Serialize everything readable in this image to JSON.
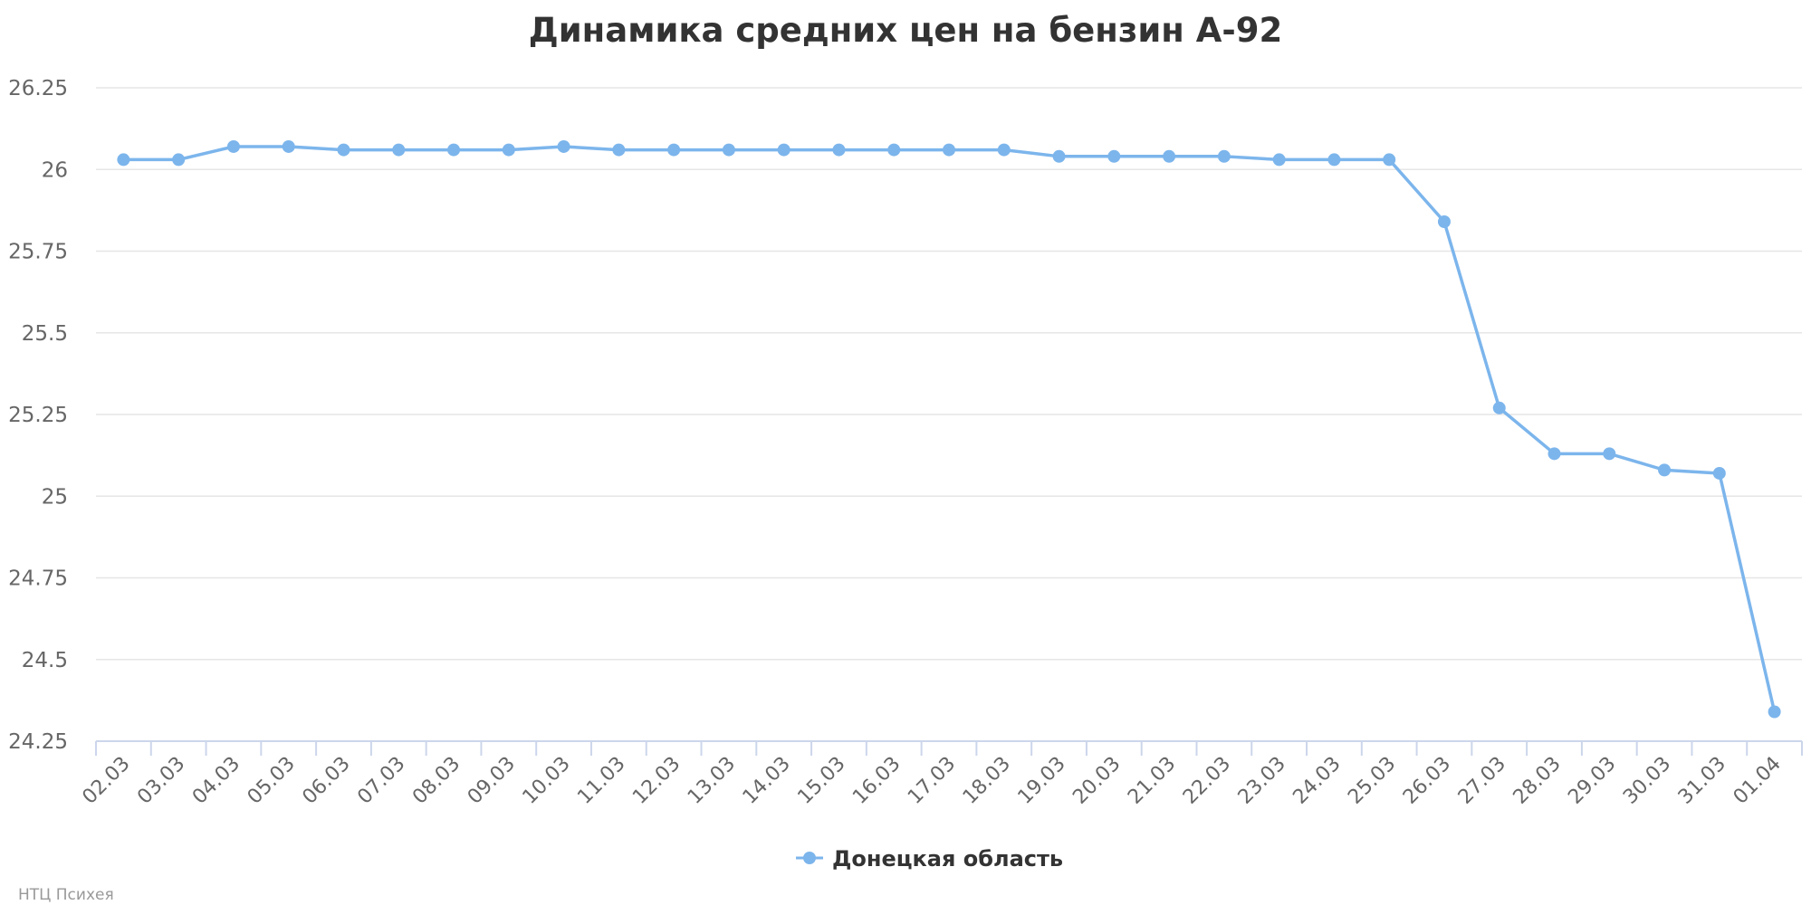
{
  "chart_data": {
    "type": "line",
    "title": "Динамика средних цен на бензин А-92",
    "categories": [
      "02.03",
      "03.03",
      "04.03",
      "05.03",
      "06.03",
      "07.03",
      "08.03",
      "09.03",
      "10.03",
      "11.03",
      "12.03",
      "13.03",
      "14.03",
      "15.03",
      "16.03",
      "17.03",
      "18.03",
      "19.03",
      "20.03",
      "21.03",
      "22.03",
      "23.03",
      "24.03",
      "25.03",
      "26.03",
      "27.03",
      "28.03",
      "29.03",
      "30.03",
      "31.03",
      "01.04"
    ],
    "series": [
      {
        "name": "Донецкая область",
        "color": "#7cb5ec",
        "values": [
          26.03,
          26.03,
          26.07,
          26.07,
          26.06,
          26.06,
          26.06,
          26.06,
          26.07,
          26.06,
          26.06,
          26.06,
          26.06,
          26.06,
          26.06,
          26.06,
          26.06,
          26.04,
          26.04,
          26.04,
          26.04,
          26.03,
          26.03,
          26.03,
          25.84,
          25.27,
          25.13,
          25.13,
          25.08,
          25.07,
          24.34
        ]
      }
    ],
    "ylim": [
      24.25,
      26.25
    ],
    "yticks": [
      "24.25",
      "24.5",
      "24.75",
      "25",
      "25.25",
      "25.5",
      "25.75",
      "26",
      "26.25"
    ],
    "grid": true,
    "legend_position": "bottom-center"
  },
  "credit": "НТЦ Психея"
}
